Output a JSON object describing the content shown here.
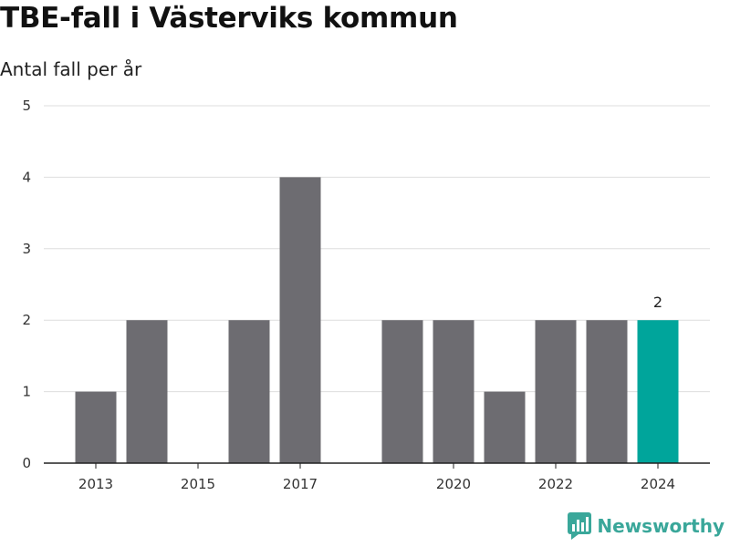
{
  "header": {
    "title": "TBE-fall i Västerviks kommun",
    "subtitle": "Antal fall per år"
  },
  "brand": {
    "name": "Newsworthy",
    "color": "#3aa79a"
  },
  "colors": {
    "bar": "#6d6c71",
    "highlight": "#00a59b",
    "grid": "#dedede",
    "axis": "#222222"
  },
  "chart_data": {
    "type": "bar",
    "title": "TBE-fall i Västerviks kommun",
    "subtitle": "Antal fall per år",
    "xlabel": "",
    "ylabel": "",
    "categories": [
      "2013",
      "2014",
      "2015",
      "2016",
      "2017",
      "2018",
      "2019",
      "2020",
      "2021",
      "2022",
      "2023",
      "2024"
    ],
    "values": [
      1,
      2,
      0,
      2,
      4,
      0,
      2,
      2,
      1,
      2,
      2,
      2
    ],
    "highlight_index": 11,
    "data_labels": [
      {
        "category": "2024",
        "text": "2"
      }
    ],
    "x_tick_labels": [
      "2013",
      "2015",
      "2017",
      "2020",
      "2022",
      "2024"
    ],
    "y_ticks": [
      "0",
      "1",
      "2",
      "3",
      "4",
      "5"
    ],
    "ylim": [
      0,
      5
    ],
    "grid": true,
    "legend": false
  }
}
